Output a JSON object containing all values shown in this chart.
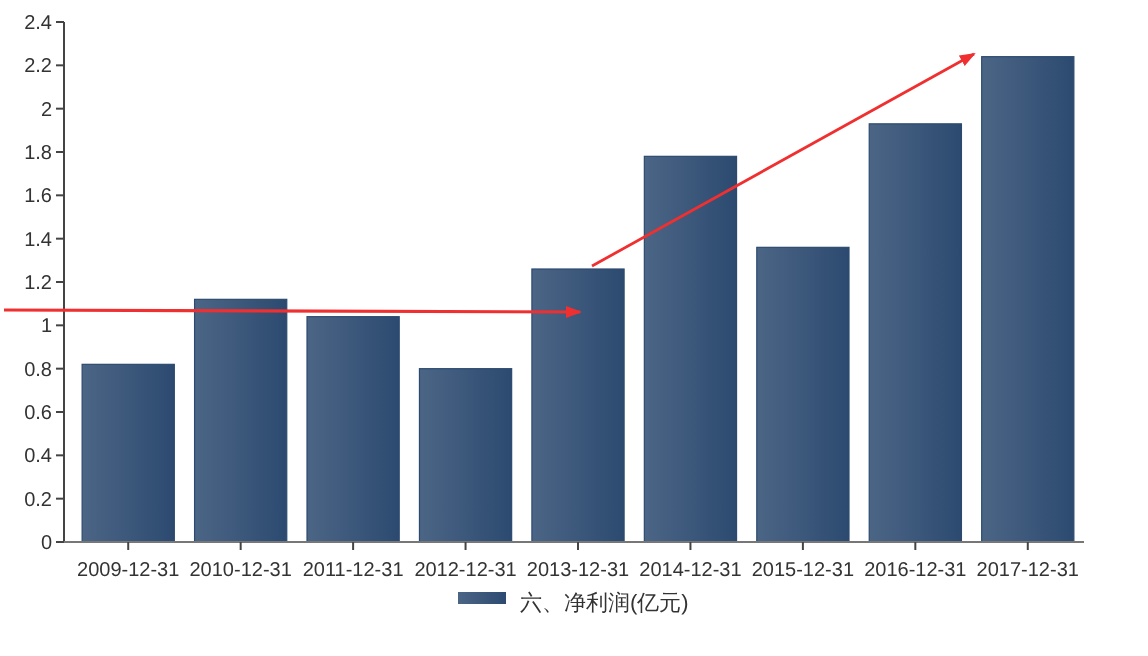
{
  "chart_data": {
    "type": "bar",
    "categories": [
      "2009-12-31",
      "2010-12-31",
      "2011-12-31",
      "2012-12-31",
      "2013-12-31",
      "2014-12-31",
      "2015-12-31",
      "2016-12-31",
      "2017-12-31"
    ],
    "series": [
      {
        "name": "六、净利润(亿元)",
        "color": "#2c4a70",
        "values": [
          0.82,
          1.12,
          1.04,
          0.8,
          1.26,
          1.78,
          1.36,
          1.93,
          2.24
        ]
      }
    ],
    "ylim": [
      0,
      2.4
    ],
    "yticks": [
      0,
      0.2,
      0.4,
      0.6,
      0.8,
      1,
      1.2,
      1.4,
      1.6,
      1.8,
      2,
      2.2,
      2.4
    ],
    "grid": false,
    "legend": "bottom"
  }
}
